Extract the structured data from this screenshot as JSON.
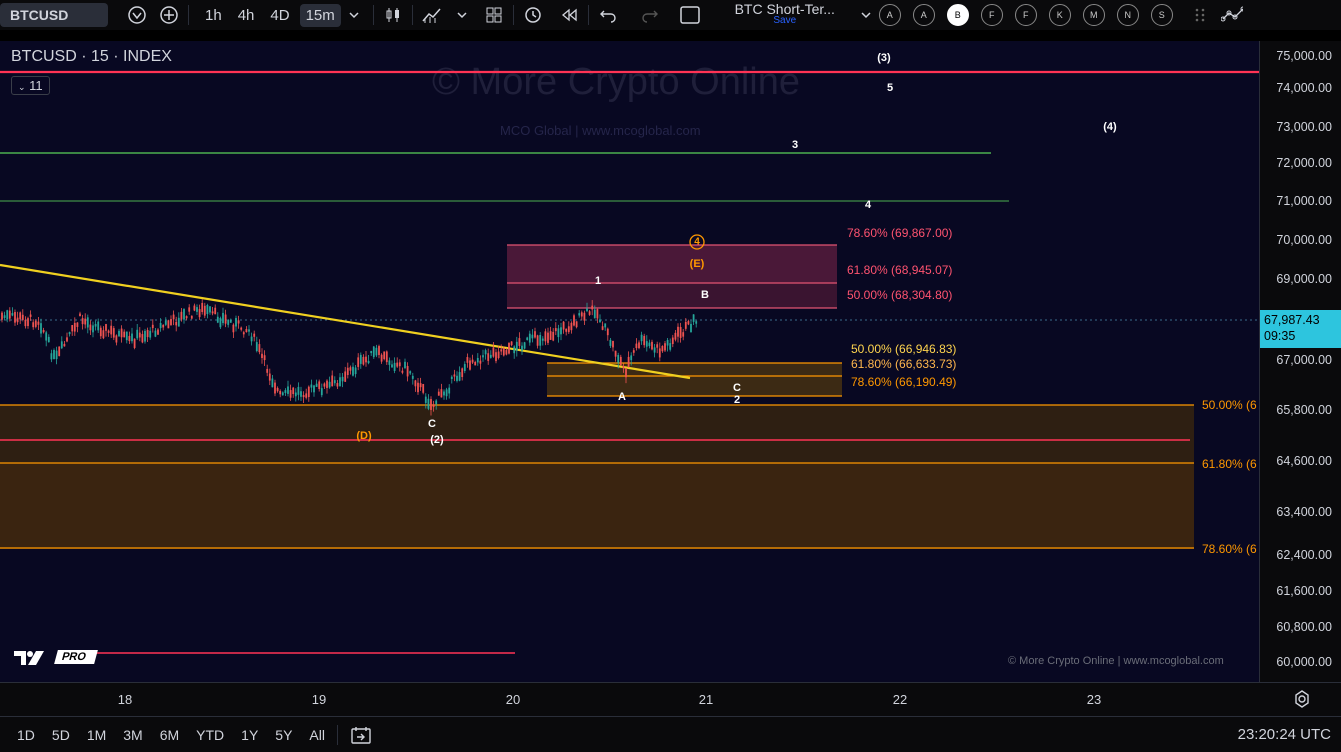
{
  "toolbar": {
    "symbol": "BTCUSD",
    "intervals": [
      "1h",
      "4h",
      "4D",
      "15m"
    ],
    "active_interval": "15m",
    "layout_name": "BTC Short-Ter...",
    "save_label": "Save",
    "profile_circles": [
      "A",
      "A",
      "B",
      "F",
      "F",
      "K",
      "M",
      "N",
      "S"
    ]
  },
  "chart": {
    "title": "BTCUSD · 15 · INDEX",
    "indicator_count": "11",
    "watermark": "© More Crypto Online",
    "watermark_sub": "MCO Global  |  www.mcoglobal.com",
    "footer_credit": "© More Crypto Online  |  www.mcoglobal.com",
    "current_price": "67,987.43",
    "countdown": "09:35",
    "colors": {
      "background": "#080822",
      "trendline": "#f0d020",
      "red_line": "#ff3355",
      "green_line": "#4caf50",
      "orange": "#ff9800",
      "up": "#26a69a",
      "down": "#ef5350"
    }
  },
  "price_axis": [
    "75,000.00",
    "74,000.00",
    "73,000.00",
    "72,000.00",
    "71,000.00",
    "70,000.00",
    "69,000.00",
    "67,000.00",
    "65,800.00",
    "64,600.00",
    "63,400.00",
    "62,400.00",
    "61,600.00",
    "60,800.00",
    "60,000.00"
  ],
  "time_axis": [
    "18",
    "19",
    "20",
    "21",
    "22",
    "23"
  ],
  "fib_upper": [
    "78.60% (69,867.00)",
    "61.80% (68,945.07)",
    "50.00% (68,304.80)"
  ],
  "fib_mid": [
    "50.00% (66,946.83)",
    "61.80% (66,633.73)",
    "78.60% (66,190.49)"
  ],
  "fib_lower": [
    "50.00% (6",
    "61.80% (6",
    "78.60% (6"
  ],
  "wave_labels": {
    "w3p": "(3)",
    "w5": "5",
    "w4p": "(4)",
    "w3": "3",
    "w4": "4",
    "w4c": "4",
    "wE": "(E)",
    "w1": "1",
    "wB": "B",
    "wA": "A",
    "wC": "C",
    "w2": "2",
    "wC2": "C",
    "w2p": "(2)",
    "wD": "(D)"
  },
  "bottombar": {
    "ranges": [
      "1D",
      "5D",
      "1M",
      "3M",
      "6M",
      "YTD",
      "1Y",
      "5Y",
      "All"
    ],
    "clock": "23:20:24 UTC"
  },
  "logo": "PRO"
}
